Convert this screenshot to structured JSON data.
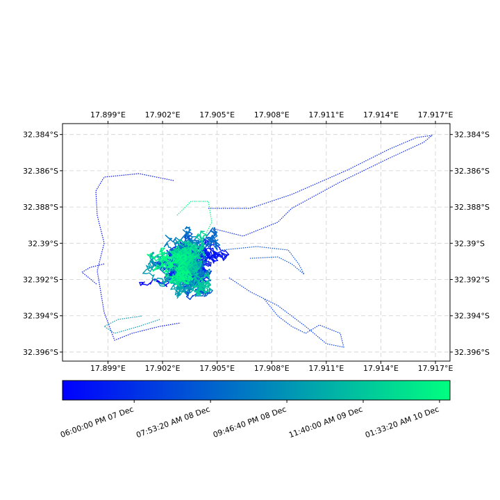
{
  "chart_data": {
    "type": "map-track",
    "x_ticks": [
      "17.899°E",
      "17.902°E",
      "17.905°E",
      "17.908°E",
      "17.911°E",
      "17.914°E",
      "17.917°E"
    ],
    "x_tick_values": [
      17.899,
      17.902,
      17.905,
      17.908,
      17.911,
      17.914,
      17.917
    ],
    "y_ticks": [
      "32.384°S",
      "32.386°S",
      "32.388°S",
      "32.39°S",
      "32.392°S",
      "32.394°S",
      "32.396°S"
    ],
    "y_tick_values": [
      -32.384,
      -32.386,
      -32.388,
      -32.39,
      -32.392,
      -32.394,
      -32.396
    ],
    "xlim": [
      17.8965,
      17.9178
    ],
    "ylim": [
      -32.3965,
      -32.3834
    ],
    "grid": true,
    "colormap": {
      "start": "#0000ff",
      "end": "#00ff80"
    },
    "colorbar": {
      "orientation": "horizontal",
      "location": "bottom",
      "tick_labels": [
        "06:00:00 PM 07 Dec",
        "07:53:20 AM 08 Dec",
        "09:46:40 PM 08 Dec",
        "11:40:00 AM 09 Dec",
        "01:33:20 AM 10 Dec"
      ]
    }
  }
}
